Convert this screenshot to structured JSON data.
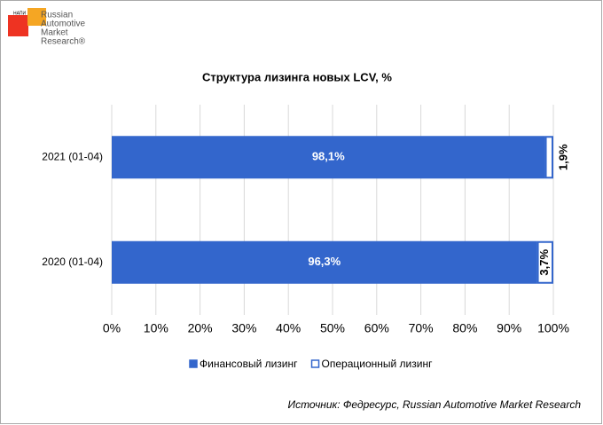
{
  "logo": {
    "small": "НАПИ",
    "lines": [
      "Russian",
      "Automotive",
      "Market",
      "Research®"
    ]
  },
  "chart_data": {
    "type": "stacked-barh",
    "title": "Структура лизинга новых LCV, %",
    "categories": [
      "2021 (01-04)",
      "2020 (01-04)"
    ],
    "series": [
      {
        "name": "Финансовый лизинг",
        "color": "#3366cc",
        "values": [
          98.1,
          96.3
        ],
        "value_labels": [
          "98,1%",
          "96,3%"
        ]
      },
      {
        "name": "Операционный лизинг",
        "color": "#ffffff",
        "values": [
          1.9,
          3.7
        ],
        "value_labels": [
          "1,9%",
          "3,7%"
        ]
      }
    ],
    "xlim": [
      0,
      100
    ],
    "xticks": [
      {
        "value": 0,
        "label": "0%"
      },
      {
        "value": 10,
        "label": "10%"
      },
      {
        "value": 20,
        "label": "20%"
      },
      {
        "value": 30,
        "label": "30%"
      },
      {
        "value": 40,
        "label": "40%"
      },
      {
        "value": 50,
        "label": "50%"
      },
      {
        "value": 60,
        "label": "60%"
      },
      {
        "value": 70,
        "label": "70%"
      },
      {
        "value": 80,
        "label": "80%"
      },
      {
        "value": 90,
        "label": "90%"
      },
      {
        "value": 100,
        "label": "100%"
      }
    ],
    "grid": true,
    "legend": "bottom",
    "source": "Источник: Федресурс, Russian Automotive Market Research"
  }
}
